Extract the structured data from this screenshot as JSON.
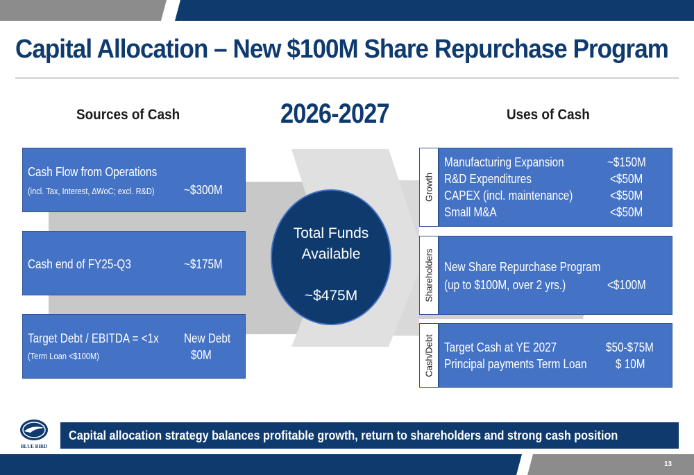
{
  "title": "Capital Allocation – New $100M Share Repurchase Program",
  "period": "2026-2027",
  "sources": {
    "heading": "Sources of Cash",
    "items": [
      {
        "label": "Cash Flow from Operations",
        "sublabel": "(incl. Tax, Interest, ∆WoC; excl. R&D)",
        "value": "~$300M"
      },
      {
        "label": "Cash end of FY25-Q3",
        "value": "~$175M"
      },
      {
        "label": "Target Debt / EBITDA = <1x",
        "sublabel": "(Term Loan <$100M)",
        "value_line1": "New Debt",
        "value_line2": "$0M"
      }
    ]
  },
  "total": {
    "line1": "Total Funds",
    "line2": "Available",
    "value": "~$475M"
  },
  "uses": {
    "heading": "Uses of Cash",
    "groups": [
      {
        "tab": "Growth",
        "items": [
          {
            "label": "Manufacturing Expansion",
            "value": "~$150M"
          },
          {
            "label": "R&D Expenditures",
            "value": "<$50M"
          },
          {
            "label": "CAPEX (incl. maintenance)",
            "value": "<$50M"
          },
          {
            "label": "Small M&A",
            "value": "<$50M"
          }
        ]
      },
      {
        "tab": "Shareholders",
        "items": [
          {
            "label": "New Share Repurchase Program",
            "value": ""
          },
          {
            "label": "(up to $100M, over 2 yrs.)",
            "value": "<$100M"
          }
        ]
      },
      {
        "tab": "Cash/Debt",
        "items": [
          {
            "label": "Target Cash at YE 2027",
            "value": "$50-$75M"
          },
          {
            "label": "Principal payments Term Loan",
            "value": "$ 10M"
          }
        ]
      }
    ]
  },
  "summary": "Capital allocation strategy balances profitable growth, return to shareholders and strong cash position",
  "logo_text": "BLUE BIRD",
  "page_number": "13",
  "colors": {
    "navy": "#0e3a6e",
    "box_blue": "#4472c4",
    "arrow_gray": "#c8c8c8",
    "bar_gray": "#8c8c8c"
  }
}
